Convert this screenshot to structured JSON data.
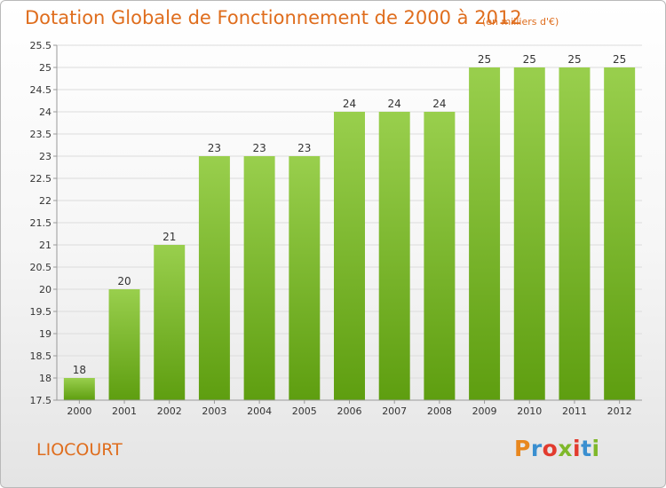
{
  "header": {
    "title": "Dotation Globale de Fonctionnement de 2000 à 2012",
    "subtitle": "(en milliers d'€)"
  },
  "footer": {
    "town": "LIOCOURT",
    "brand": "Proxiti",
    "brand_colors": [
      "#e8871e",
      "#3a8fd0",
      "#e23b2e",
      "#7fb82a",
      "#e23b2e",
      "#3a8fd0",
      "#7fb82a"
    ]
  },
  "colors": {
    "accent": "#df6d1d",
    "bar_top": "#99cf4d",
    "bar_bottom": "#5e9e10",
    "grid": "#dcdcdc",
    "axis": "#999999"
  },
  "chart_data": {
    "type": "bar",
    "title": "Dotation Globale de Fonctionnement de 2000 à 2012",
    "subtitle": "(en milliers d'€)",
    "xlabel": "",
    "ylabel": "",
    "categories": [
      "2000",
      "2001",
      "2002",
      "2003",
      "2004",
      "2005",
      "2006",
      "2007",
      "2008",
      "2009",
      "2010",
      "2011",
      "2012"
    ],
    "values": [
      18,
      20,
      21,
      23,
      23,
      23,
      24,
      24,
      24,
      25,
      25,
      25,
      25
    ],
    "data_labels": [
      "18",
      "20",
      "21",
      "23",
      "23",
      "23",
      "24",
      "24",
      "24",
      "25",
      "25",
      "25",
      "25"
    ],
    "ylim": [
      17.5,
      25.5
    ],
    "yticks": [
      "17.5",
      "18",
      "18.5",
      "19",
      "19.5",
      "20",
      "20.5",
      "21",
      "21.5",
      "22",
      "22.5",
      "23",
      "23.5",
      "24",
      "24.5",
      "25",
      "25.5"
    ],
    "grid": true,
    "legend": "none"
  }
}
